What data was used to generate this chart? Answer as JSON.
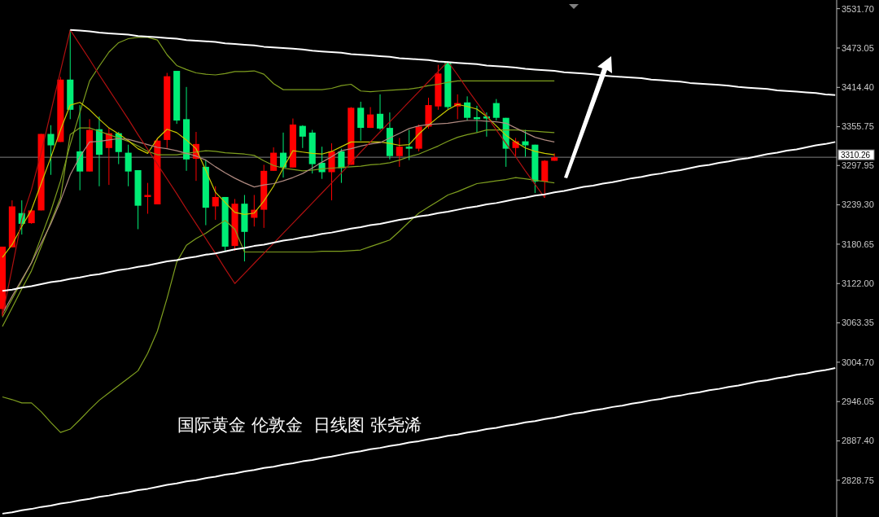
{
  "chart_data": {
    "type": "candlestick",
    "title": "国际黄金 伦敦金  日线图 张尧浠",
    "tick_labels": "y",
    "categories": [
      null,
      null,
      null,
      null,
      null,
      null,
      null,
      null,
      null,
      null,
      null,
      null,
      null,
      null,
      null,
      null,
      null,
      null,
      null,
      null,
      null,
      null,
      null,
      null,
      null,
      null,
      null,
      null,
      null,
      null,
      null,
      null,
      null,
      null,
      null,
      null,
      null,
      null,
      null,
      null,
      null,
      null,
      null,
      null,
      null,
      null,
      null,
      null,
      null,
      null,
      null,
      null,
      null,
      null,
      null,
      null,
      null,
      null,
      null,
      null,
      null,
      null,
      null,
      null,
      null,
      null,
      null,
      null,
      null,
      null,
      null,
      null,
      null,
      null,
      null,
      null,
      null,
      null,
      null,
      null,
      null,
      null,
      null,
      null,
      null,
      null,
      null
    ],
    "ylim": [
      2774,
      3541
    ],
    "yticks": [
      {
        "value": 3531.7,
        "label": "3531.70"
      },
      {
        "value": 3473.05,
        "label": "3473.05"
      },
      {
        "value": 3414.4,
        "label": "3414.40"
      },
      {
        "value": 3355.75,
        "label": "3355.75"
      },
      {
        "value": 3297.95,
        "label": "3297.95"
      },
      {
        "value": 3239.3,
        "label": "3239.30"
      },
      {
        "value": 3180.65,
        "label": "3180.65"
      },
      {
        "value": 3122,
        "label": "3122.00"
      },
      {
        "value": 3063.35,
        "label": "3063.35"
      },
      {
        "value": 3004.7,
        "label": "3004.70"
      },
      {
        "value": 2946.05,
        "label": "2946.05"
      },
      {
        "value": 2887.4,
        "label": "2887.40"
      },
      {
        "value": 2828.75,
        "label": "2828.75"
      }
    ],
    "ohlc": [
      [
        3084,
        3177,
        3074,
        3177
      ],
      [
        3176,
        3246,
        3176,
        3237
      ],
      [
        3227,
        3246,
        3195,
        3211
      ],
      [
        3212,
        3232,
        3211,
        3231
      ],
      [
        3231,
        3345,
        3231,
        3345
      ],
      [
        3345,
        3358,
        3284,
        3328
      ],
      [
        3333,
        3430,
        3333,
        3426
      ],
      [
        3426,
        3500,
        3367,
        3381
      ],
      [
        3319,
        3388,
        3261,
        3289
      ],
      [
        3289,
        3367,
        3289,
        3351
      ],
      [
        3352,
        3371,
        3267,
        3314
      ],
      [
        3324,
        3354,
        3269,
        3346
      ],
      [
        3346,
        3348,
        3300,
        3318
      ],
      [
        3317,
        3329,
        3267,
        3289
      ],
      [
        3291,
        3291,
        3203,
        3238
      ],
      [
        3251,
        3272,
        3226,
        3254
      ],
      [
        3240,
        3339,
        3240,
        3335
      ],
      [
        3336,
        3436,
        3324,
        3431
      ],
      [
        3439,
        3439,
        3360,
        3365
      ],
      [
        3367,
        3415,
        3290,
        3307
      ],
      [
        3308,
        3348,
        3275,
        3330
      ],
      [
        3296,
        3306,
        3209,
        3235
      ],
      [
        3237,
        3267,
        3217,
        3251
      ],
      [
        3251,
        3251,
        3171,
        3177
      ],
      [
        3178,
        3248,
        3171,
        3241
      ],
      [
        3241,
        3254,
        3155,
        3199
      ],
      [
        3220,
        3254,
        3207,
        3232
      ],
      [
        3232,
        3299,
        3205,
        3290
      ],
      [
        3290,
        3325,
        3290,
        3317
      ],
      [
        3317,
        3347,
        3280,
        3295
      ],
      [
        3295,
        3368,
        3295,
        3359
      ],
      [
        3357,
        3358,
        3324,
        3341
      ],
      [
        3347,
        3351,
        3286,
        3300
      ],
      [
        3302,
        3326,
        3278,
        3288
      ],
      [
        3288,
        3331,
        3246,
        3319
      ],
      [
        3319,
        3323,
        3272,
        3294
      ],
      [
        3299,
        3385,
        3299,
        3384
      ],
      [
        3384,
        3393,
        3335,
        3354
      ],
      [
        3354,
        3385,
        3354,
        3374
      ],
      [
        3375,
        3404,
        3351,
        3353
      ],
      [
        3354,
        3377,
        3307,
        3312
      ],
      [
        3312,
        3339,
        3296,
        3326
      ],
      [
        3326,
        3351,
        3306,
        3323
      ],
      [
        3323,
        3359,
        3319,
        3356
      ],
      [
        3356,
        3399,
        3353,
        3388
      ],
      [
        3386,
        3448,
        3381,
        3435
      ],
      [
        3452,
        3453,
        3382,
        3385
      ],
      [
        3386,
        3404,
        3367,
        3391
      ],
      [
        3392,
        3401,
        3365,
        3369
      ],
      [
        3370,
        3387,
        3347,
        3367
      ],
      [
        3371,
        3377,
        3341,
        3368
      ],
      [
        3391,
        3397,
        3365,
        3369
      ],
      [
        3369,
        3369,
        3296,
        3323
      ],
      [
        3324,
        3339,
        3312,
        3334
      ],
      [
        3334,
        3351,
        3311,
        3328
      ],
      [
        3329,
        3329,
        3257,
        3274
      ],
      [
        3274,
        3306,
        3250,
        3305
      ],
      [
        3305,
        3316,
        3305,
        3310.26
      ],
      null,
      null,
      null,
      null,
      null,
      null,
      null,
      null,
      null,
      null,
      null,
      null,
      null,
      null,
      null,
      null,
      null,
      null,
      null,
      null,
      null,
      null,
      null,
      null,
      null,
      null,
      null,
      null,
      null
    ],
    "colors": [
      "#ff0000",
      "#ff0000",
      "#00ee76",
      "#ff0000",
      "#ff0000",
      "#00ee76",
      "#ff0000",
      "#00ee76",
      "#00ee76",
      "#ff0000",
      "#00ee76",
      "#ff0000",
      "#00ee76",
      "#00ee76",
      "#00ee76",
      "#ff0000",
      "#ff0000",
      "#ff0000",
      "#00ee76",
      "#00ee76",
      "#ff0000",
      "#00ee76",
      "#ff0000",
      "#00ee76",
      "#ff0000",
      "#00ee76",
      "#ff0000",
      "#ff0000",
      "#ff0000",
      "#00ee76",
      "#ff0000",
      "#00ee76",
      "#00ee76",
      "#00ee76",
      "#ff0000",
      "#00ee76",
      "#ff0000",
      "#00ee76",
      "#ff0000",
      "#00ee76",
      "#00ee76",
      "#ff0000",
      "#00ee76",
      "#ff0000",
      "#ff0000",
      "#ff0000",
      "#00ee76",
      "#ff0000",
      "#00ee76",
      "#00ee76",
      "#00ee76",
      "#00ee76",
      "#00ee76",
      "#ff0000",
      "#00ee76",
      "#00ee76",
      "#ff0000",
      "#ff0000",
      null,
      null,
      null,
      null,
      null,
      null,
      null,
      null,
      null,
      null,
      null,
      null,
      null,
      null,
      null,
      null,
      null,
      null,
      null,
      null,
      null,
      null,
      null,
      null,
      null,
      null,
      null,
      null,
      null
    ],
    "series": [
      {
        "type": "line",
        "color": "#7f9f1f",
        "values": [
          3072,
          3099,
          3126,
          3153,
          3191,
          3230,
          3275,
          3329,
          3377,
          3424,
          3446,
          3467,
          3481,
          3487,
          3489,
          3489,
          3485,
          3463,
          3447,
          3441,
          3436,
          3434,
          3433,
          3435,
          3438,
          3438,
          3439,
          3434,
          3420,
          3411,
          3411,
          3411,
          3411,
          3411,
          3413,
          3417,
          3419,
          3409,
          3408,
          3409,
          3410,
          3411,
          3412,
          3414,
          3417,
          3419,
          3422,
          3424,
          3424,
          3424,
          3424,
          3424,
          3424,
          3424,
          3424,
          3424,
          3424,
          3424,
          null,
          null,
          null,
          null,
          null,
          null,
          null,
          null,
          null,
          null,
          null,
          null,
          null,
          null,
          null,
          null,
          null,
          null,
          null,
          null,
          null,
          null,
          null,
          null,
          null,
          null,
          null,
          null,
          null
        ]
      },
      {
        "type": "line",
        "color": "#7f9f1f",
        "values": [
          3058,
          3086,
          3114,
          3141,
          3177,
          3214,
          3250,
          3344,
          3354,
          3354,
          3349,
          3344,
          3339,
          3334,
          3327,
          3319,
          3314,
          3314,
          3314,
          3316,
          3318,
          3320,
          3319,
          3317,
          3316,
          3315,
          3313,
          3305,
          3298,
          3294,
          3292,
          3290,
          3291,
          3293,
          3294,
          3295,
          3296,
          3297,
          3299,
          3300,
          3302,
          3306,
          3311,
          3315,
          3321,
          3327,
          3334,
          3340,
          3344,
          3347,
          3351,
          3351,
          3351,
          3351,
          3350,
          3349,
          3348,
          3347,
          null,
          null,
          null,
          null,
          null,
          null,
          null,
          null,
          null,
          null,
          null,
          null,
          null,
          null,
          null,
          null,
          null,
          null,
          null,
          null,
          null,
          null,
          null,
          null,
          null,
          null,
          null,
          null,
          null
        ]
      },
      {
        "type": "line",
        "color": "#7f9f1f",
        "values": [
          2953,
          2949,
          2944,
          2944,
          2931,
          2915,
          2900,
          2905,
          2919,
          2934,
          2948,
          2959,
          2970,
          2981,
          2992,
          3018,
          3051,
          3100,
          3154,
          3179,
          3189,
          3197,
          3207,
          3216,
          3203,
          3169,
          3169,
          3169,
          3169,
          3169,
          3169,
          3169,
          3169,
          3170,
          3170,
          3170,
          3171,
          3172,
          3177,
          3182,
          3187,
          3200,
          3214,
          3227,
          3236,
          3245,
          3254,
          3259,
          3265,
          3271,
          3273,
          3275,
          3277,
          3280,
          3278,
          3276,
          3274,
          3272,
          null,
          null,
          null,
          null,
          null,
          null,
          null,
          null,
          null,
          null,
          null,
          null,
          null,
          null,
          null,
          null,
          null,
          null,
          null,
          null,
          null,
          null,
          null,
          null,
          null,
          null,
          null,
          null,
          null
        ]
      },
      {
        "type": "line",
        "color": "#c8c800",
        "values": [
          3161,
          3180,
          3207,
          3232,
          3271,
          3310,
          3351,
          3388,
          3392,
          3381,
          3367,
          3354,
          3345,
          3335,
          3323,
          3316,
          3338,
          3352,
          3347,
          3336,
          3323,
          3291,
          3258,
          3243,
          3228,
          3225,
          3227,
          3245,
          3267,
          3294,
          3320,
          3318,
          3316,
          3315,
          3319,
          3326,
          3333,
          3333,
          3333,
          3333,
          3331,
          3328,
          3329,
          3345,
          3358,
          3370,
          3381,
          3389,
          3386,
          3382,
          3371,
          3357,
          3343,
          3333,
          3324,
          3319,
          3316,
          3314,
          null,
          null,
          null,
          null,
          null,
          null,
          null,
          null,
          null,
          null,
          null,
          null,
          null,
          null,
          null,
          null,
          null,
          null,
          null,
          null,
          null,
          null,
          null,
          null,
          null,
          null,
          null,
          null,
          null
        ]
      },
      {
        "type": "line",
        "color": "#b08a80",
        "values": [
          3077,
          3103,
          3128,
          3153,
          3182,
          3211,
          3245,
          3284,
          3311,
          3333,
          3334,
          3336,
          3338,
          3337,
          3333,
          3329,
          3325,
          3323,
          3320,
          3316,
          3312,
          3306,
          3296,
          3287,
          3279,
          3272,
          3266,
          3269,
          3271,
          3275,
          3280,
          3286,
          3294,
          3303,
          3311,
          3320,
          3323,
          3327,
          3330,
          3332,
          3339,
          3346,
          3353,
          3357,
          3359,
          3360,
          3361,
          3363,
          3365,
          3365,
          3364,
          3363,
          3361,
          3354,
          3347,
          3340,
          3336,
          3333,
          null,
          null,
          null,
          null,
          null,
          null,
          null,
          null,
          null,
          null,
          null,
          null,
          null,
          null,
          null,
          null,
          null,
          null,
          null,
          null,
          null,
          null,
          null,
          null,
          null,
          null,
          null,
          null,
          null
        ]
      },
      {
        "type": "line",
        "color": "#b01010",
        "values": [
          3074,
          3145,
          3218,
          3262,
          3317,
          3378,
          3439,
          3500,
          3478,
          3456,
          3433,
          3411,
          3389,
          3367,
          3344,
          3322,
          3300,
          3278,
          3256,
          3233,
          3211,
          3189,
          3167,
          3144,
          3122,
          3137,
          3152,
          3167,
          3182,
          3197,
          3212,
          3227,
          3242,
          3257,
          3272,
          3287,
          3302,
          3318,
          3333,
          3348,
          3363,
          3378,
          3393,
          3408,
          3423,
          3438,
          3453,
          3433,
          3412,
          3392,
          3372,
          3351,
          3331,
          3311,
          3290,
          3270,
          3250,
          null,
          null,
          null,
          null,
          null,
          null,
          null,
          null,
          null,
          null,
          null,
          null,
          null,
          null,
          null,
          null,
          null,
          null,
          null,
          null,
          null,
          null,
          null,
          null,
          null,
          null,
          null,
          null,
          null,
          null
        ]
      },
      {
        "type": "line",
        "color": "#ffffff",
        "values": [
          null,
          null,
          null,
          null,
          null,
          null,
          null,
          3500,
          3499,
          3498,
          3496,
          3495,
          3494,
          3493,
          3491,
          3490,
          3489,
          3488,
          3487,
          3485,
          3484,
          3483,
          3482,
          3480,
          3479,
          3478,
          3477,
          3475,
          3474,
          3473,
          3472,
          3471,
          3469,
          3468,
          3467,
          3466,
          3464,
          3463,
          3462,
          3461,
          3460,
          3458,
          3457,
          3456,
          3455,
          3453,
          3452,
          3451,
          3450,
          3449,
          3447,
          3446,
          3445,
          3444,
          3442,
          3441,
          3440,
          3439,
          3437,
          3436,
          3435,
          3434,
          3432,
          3431,
          3430,
          3429,
          3428,
          3426,
          3425,
          3424,
          3423,
          3421,
          3420,
          3419,
          3418,
          3417,
          3415,
          3414,
          3413,
          3412,
          3410,
          3409,
          3408,
          3407,
          3406,
          3404,
          3403
        ]
      },
      {
        "type": "line",
        "color": "#ffffff",
        "values": [
          3111,
          3113,
          3116,
          3118,
          3121,
          3124,
          3126,
          3129,
          3131,
          3134,
          3136,
          3139,
          3142,
          3144,
          3147,
          3149,
          3152,
          3155,
          3157,
          3160,
          3162,
          3165,
          3167,
          3170,
          3173,
          3175,
          3178,
          3180,
          3183,
          3186,
          3188,
          3191,
          3193,
          3196,
          3198,
          3201,
          3204,
          3206,
          3209,
          3211,
          3214,
          3217,
          3219,
          3222,
          3224,
          3227,
          3229,
          3232,
          3235,
          3237,
          3240,
          3242,
          3245,
          3248,
          3250,
          3253,
          3255,
          3258,
          3260,
          3263,
          3266,
          3268,
          3271,
          3273,
          3276,
          3279,
          3281,
          3284,
          3286,
          3289,
          3291,
          3294,
          3297,
          3299,
          3302,
          3304,
          3307,
          3309,
          3312,
          3315,
          3317,
          3320,
          3322,
          3325,
          3328,
          3330,
          3333
        ]
      },
      {
        "type": "line",
        "color": "#ffffff",
        "values": [
          2779,
          2781,
          2784,
          2786,
          2789,
          2791,
          2794,
          2796,
          2799,
          2801,
          2804,
          2806,
          2809,
          2811,
          2814,
          2816,
          2819,
          2822,
          2824,
          2827,
          2829,
          2832,
          2834,
          2837,
          2839,
          2842,
          2844,
          2847,
          2849,
          2852,
          2854,
          2857,
          2859,
          2862,
          2864,
          2867,
          2870,
          2872,
          2875,
          2877,
          2880,
          2882,
          2885,
          2887,
          2890,
          2892,
          2895,
          2897,
          2900,
          2902,
          2905,
          2907,
          2910,
          2912,
          2915,
          2917,
          2920,
          2922,
          2925,
          2928,
          2930,
          2933,
          2935,
          2938,
          2940,
          2943,
          2945,
          2948,
          2950,
          2953,
          2955,
          2958,
          2960,
          2963,
          2965,
          2968,
          2970,
          2973,
          2976,
          2978,
          2981,
          2983,
          2986,
          2988,
          2991,
          2993,
          2996
        ]
      }
    ],
    "ref_lines": [
      {
        "axis": "y",
        "value": 3310.26,
        "label": "3310.26",
        "color": "#808080"
      }
    ]
  }
}
